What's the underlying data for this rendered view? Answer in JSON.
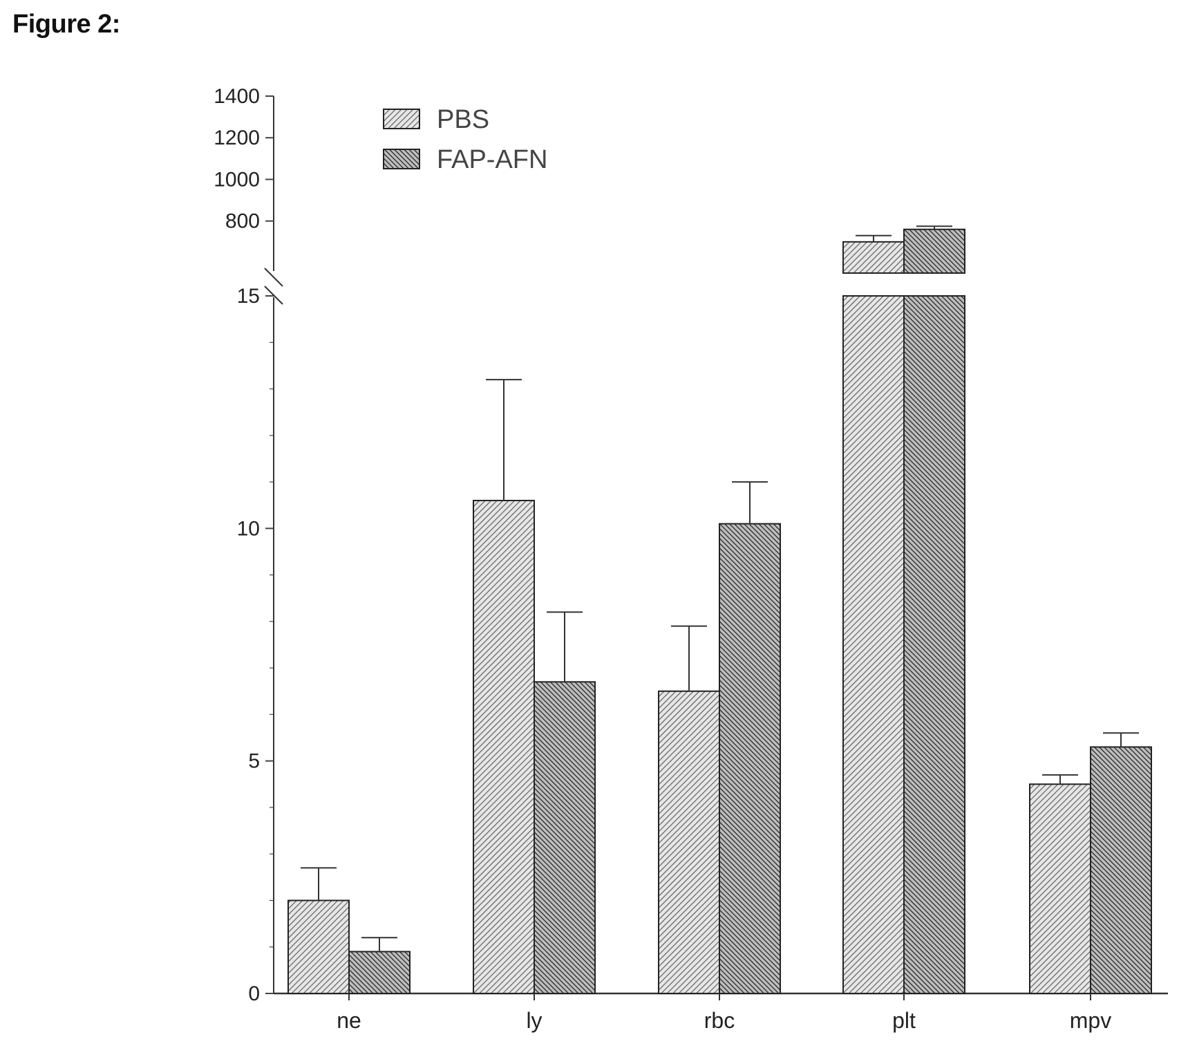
{
  "figure_label": "Figure 2:",
  "chart_data": {
    "type": "bar",
    "categories": [
      "ne",
      "ly",
      "rbc",
      "plt",
      "mpv"
    ],
    "series": [
      {
        "name": "PBS",
        "values": [
          2.0,
          10.6,
          6.5,
          700,
          4.5
        ],
        "errors": [
          0.7,
          2.6,
          1.4,
          30,
          0.2
        ],
        "pattern": "light-hatch"
      },
      {
        "name": "FAP-AFN",
        "values": [
          0.9,
          6.7,
          10.1,
          760,
          5.3
        ],
        "errors": [
          0.3,
          1.5,
          0.9,
          15,
          0.3
        ],
        "pattern": "dark-hatch"
      }
    ],
    "y_axis": {
      "broken": true,
      "lower_segment": {
        "range": [
          0,
          15
        ],
        "ticks": [
          "0",
          "5",
          "10",
          "15"
        ]
      },
      "upper_segment": {
        "range": [
          550,
          1400
        ],
        "ticks": [
          "800",
          "1000",
          "1200",
          "1400"
        ]
      }
    },
    "legend_position": "top-left",
    "grid": false
  }
}
